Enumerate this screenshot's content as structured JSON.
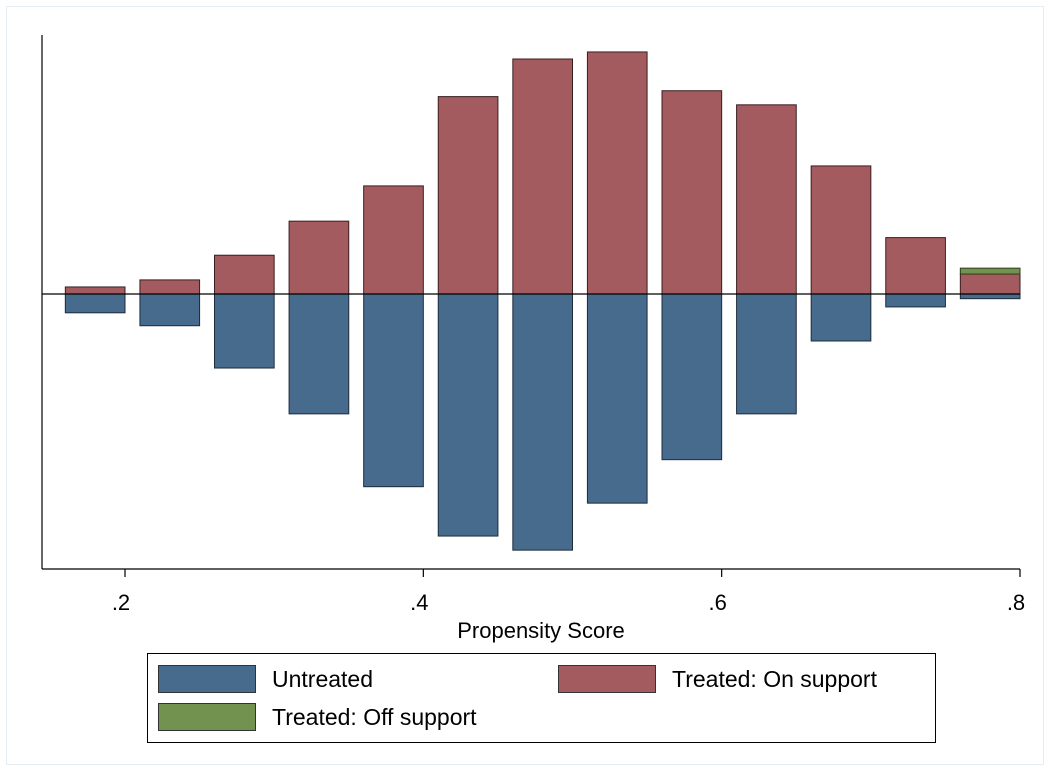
{
  "chart_data": {
    "type": "bar",
    "xlabel": "Propensity Score",
    "ylabel": "",
    "xlim": [
      0.14,
      0.8
    ],
    "xticks": [
      0.2,
      0.4,
      0.6,
      0.8
    ],
    "xtick_labels": [
      ".2",
      ".4",
      ".6",
      ".8"
    ],
    "bin_edges": [
      [
        0.16,
        0.2
      ],
      [
        0.21,
        0.25
      ],
      [
        0.26,
        0.3
      ],
      [
        0.31,
        0.35
      ],
      [
        0.36,
        0.4
      ],
      [
        0.41,
        0.45
      ],
      [
        0.46,
        0.5
      ],
      [
        0.51,
        0.55
      ],
      [
        0.56,
        0.6
      ],
      [
        0.61,
        0.65
      ],
      [
        0.66,
        0.7
      ],
      [
        0.71,
        0.75
      ],
      [
        0.76,
        0.8
      ]
    ],
    "y_reference": 0,
    "ylim": [
      -1.09,
      1.04
    ],
    "series": [
      {
        "name": "Untreated",
        "color": "#476b8c",
        "direction": "down",
        "values": [
          0.08,
          0.135,
          0.315,
          0.51,
          0.82,
          1.03,
          1.09,
          0.89,
          0.705,
          0.51,
          0.2,
          0.055,
          0.02
        ]
      },
      {
        "name": "Treated: On support",
        "color": "#a35b5f",
        "direction": "up",
        "values": [
          0.03,
          0.06,
          0.165,
          0.31,
          0.46,
          0.84,
          1.0,
          1.03,
          0.865,
          0.805,
          0.545,
          0.24,
          0.085
        ]
      },
      {
        "name": "Treated: Off support",
        "color": "#72924f",
        "direction": "up",
        "values": [
          0,
          0,
          0,
          0,
          0,
          0,
          0,
          0,
          0,
          0,
          0,
          0,
          0.025
        ]
      }
    ],
    "legend_position": "bottom"
  },
  "legend": {
    "items": [
      {
        "label": "Untreated",
        "color": "#476b8c"
      },
      {
        "label": "Treated: On support",
        "color": "#a35b5f"
      },
      {
        "label": "Treated: Off support",
        "color": "#72924f"
      }
    ]
  }
}
